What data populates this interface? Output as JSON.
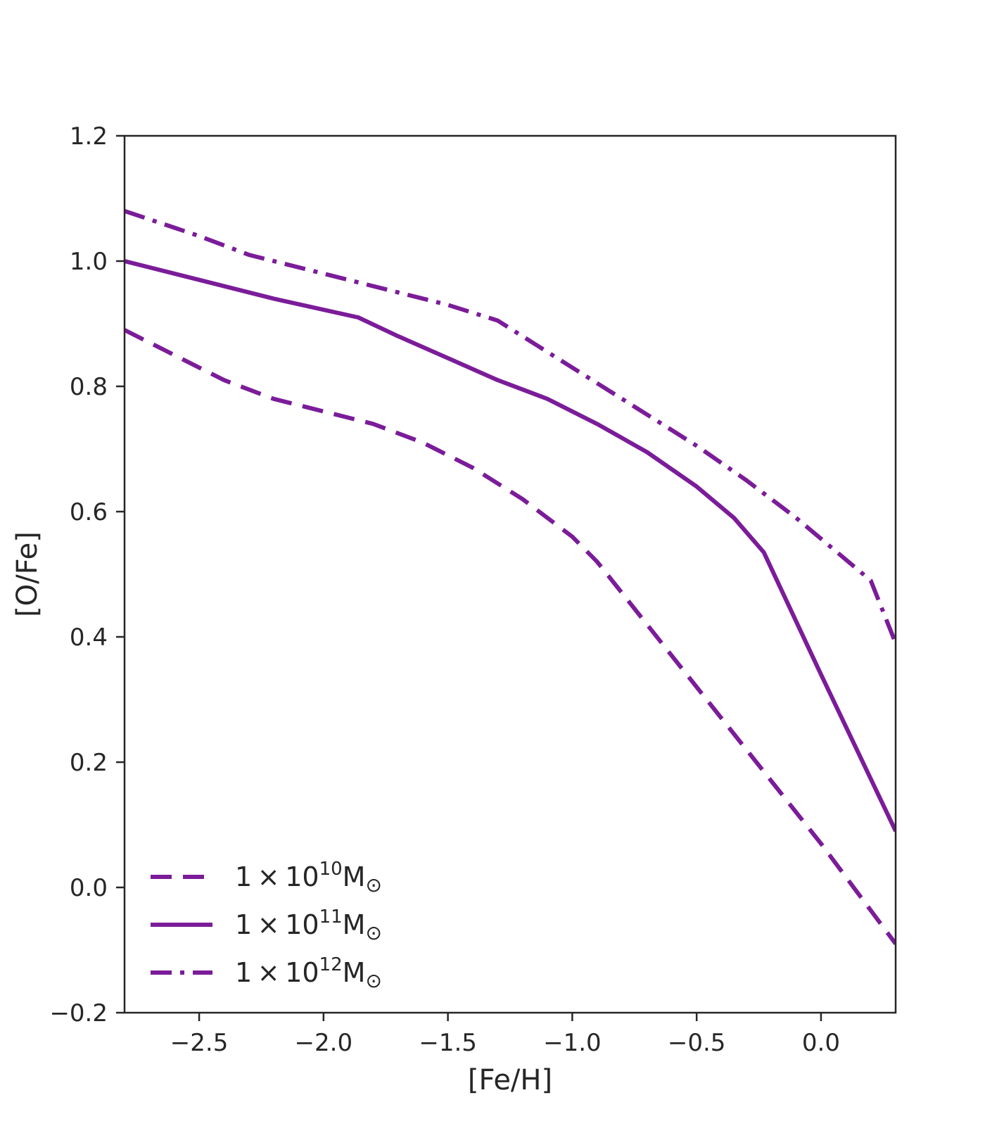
{
  "chart_data": {
    "type": "line",
    "title": "",
    "xlabel": "[Fe/H]",
    "ylabel": "[O/Fe]",
    "xlim": [
      -2.8,
      0.3
    ],
    "ylim": [
      -0.2,
      1.2
    ],
    "xticks": [
      -2.5,
      -2.0,
      -1.5,
      -1.0,
      -0.5,
      0.0
    ],
    "xtick_labels": [
      "−2.5",
      "−2.0",
      "−1.5",
      "−1.0",
      "−0.5",
      "0.0"
    ],
    "yticks": [
      -0.2,
      0.0,
      0.2,
      0.4,
      0.6,
      0.8,
      1.0,
      1.2
    ],
    "ytick_labels": [
      "−0.2",
      "0.0",
      "0.2",
      "0.4",
      "0.6",
      "0.8",
      "1.0",
      "1.2"
    ],
    "grid": false,
    "legend_position": "lower-left",
    "line_color": "#7b1c99",
    "series": [
      {
        "name": "1 × 10^10 M⊙",
        "legend": {
          "mantissa": "1 × 10",
          "exponent": "10",
          "unit": "M",
          "sub": "⊙"
        },
        "style": "dashed",
        "x": [
          -2.8,
          -2.6,
          -2.4,
          -2.2,
          -2.0,
          -1.8,
          -1.6,
          -1.4,
          -1.2,
          -1.0,
          -0.9,
          -0.8,
          -0.6,
          -0.4,
          -0.2,
          0.0,
          0.3
        ],
        "y": [
          0.89,
          0.85,
          0.81,
          0.78,
          0.76,
          0.74,
          0.71,
          0.67,
          0.62,
          0.56,
          0.52,
          0.47,
          0.37,
          0.27,
          0.17,
          0.07,
          -0.09
        ]
      },
      {
        "name": "1 × 10^11 M⊙",
        "legend": {
          "mantissa": "1 × 10",
          "exponent": "11",
          "unit": "M",
          "sub": "⊙"
        },
        "style": "solid",
        "x": [
          -2.8,
          -2.5,
          -2.2,
          -1.86,
          -1.7,
          -1.5,
          -1.3,
          -1.1,
          -0.9,
          -0.7,
          -0.5,
          -0.35,
          -0.23,
          0.0,
          0.3
        ],
        "y": [
          1.0,
          0.97,
          0.94,
          0.91,
          0.88,
          0.845,
          0.81,
          0.78,
          0.74,
          0.695,
          0.64,
          0.59,
          0.535,
          0.34,
          0.09
        ]
      },
      {
        "name": "1 × 10^12 M⊙",
        "legend": {
          "mantissa": "1 × 10",
          "exponent": "12",
          "unit": "M",
          "sub": "⊙"
        },
        "style": "dashdot",
        "x": [
          -2.8,
          -2.5,
          -2.3,
          -2.0,
          -1.7,
          -1.5,
          -1.3,
          -1.1,
          -0.9,
          -0.7,
          -0.5,
          -0.3,
          -0.1,
          0.2,
          0.3
        ],
        "y": [
          1.08,
          1.04,
          1.01,
          0.98,
          0.95,
          0.93,
          0.905,
          0.855,
          0.805,
          0.755,
          0.705,
          0.65,
          0.59,
          0.49,
          0.39
        ]
      }
    ]
  }
}
